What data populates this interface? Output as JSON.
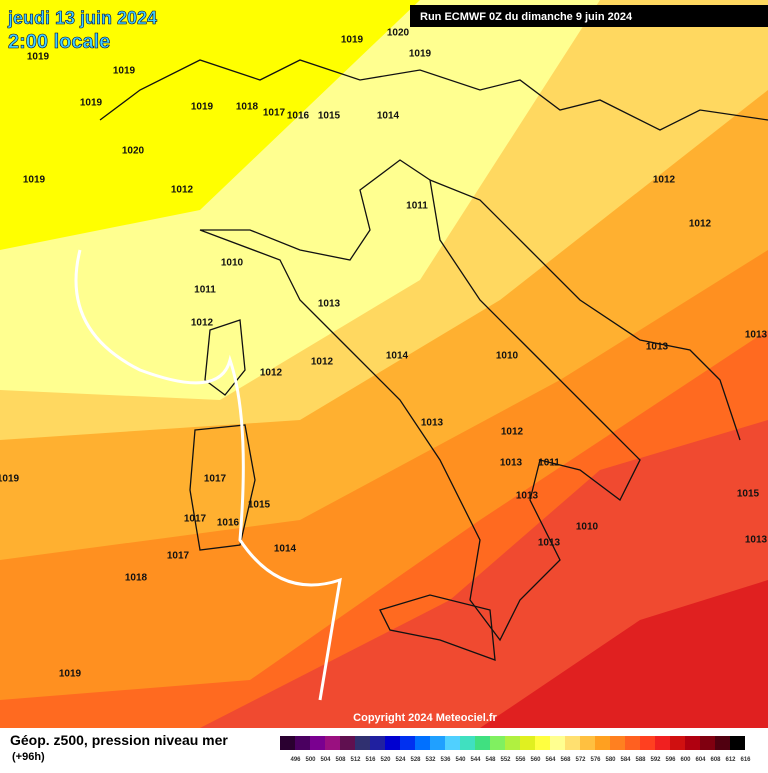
{
  "header": {
    "date": "jeudi 13 juin 2024",
    "time": "2:00 locale",
    "run": "Run ECMWF 0Z du dimanche 9 juin 2024"
  },
  "pressure_labels": [
    1019,
    1020,
    1019,
    1019,
    1019,
    1019,
    1019,
    1018,
    1017,
    1016,
    1015,
    1014,
    1020,
    1019,
    1012,
    1011,
    1012,
    1012,
    1010,
    1011,
    1013,
    1012,
    1013,
    1013,
    1010,
    1014,
    1012,
    1012,
    1013,
    1012,
    1013,
    1011,
    1017,
    1019,
    1013,
    1015,
    1017,
    1016,
    1015,
    1010,
    1013,
    1014,
    1013,
    1017,
    1018,
    1019
  ],
  "copyright": "Copyright 2024 Meteociel.fr",
  "footer": {
    "title": "Géop. z500, pression niveau mer",
    "subtitle": "(+96h)"
  },
  "legend": {
    "labels": [
      496,
      500,
      504,
      508,
      512,
      516,
      520,
      524,
      528,
      532,
      536,
      540,
      544,
      548,
      552,
      556,
      560,
      564,
      568,
      572,
      576,
      580,
      584,
      588,
      592,
      596,
      600,
      604,
      608,
      612,
      616
    ],
    "colors": [
      "#2a0030",
      "#4a0060",
      "#7a0090",
      "#9a1080",
      "#601050",
      "#303070",
      "#2020a0",
      "#0000d0",
      "#0030f0",
      "#0070ff",
      "#20a0ff",
      "#50d0ff",
      "#40e0c0",
      "#40e080",
      "#80f060",
      "#b0f040",
      "#e0f020",
      "#ffff40",
      "#ffff90",
      "#ffe070",
      "#ffc040",
      "#ffa020",
      "#ff8020",
      "#ff6020",
      "#ff4020",
      "#f02020",
      "#d01010",
      "#b00010",
      "#800010",
      "#500010",
      "#000000"
    ]
  }
}
